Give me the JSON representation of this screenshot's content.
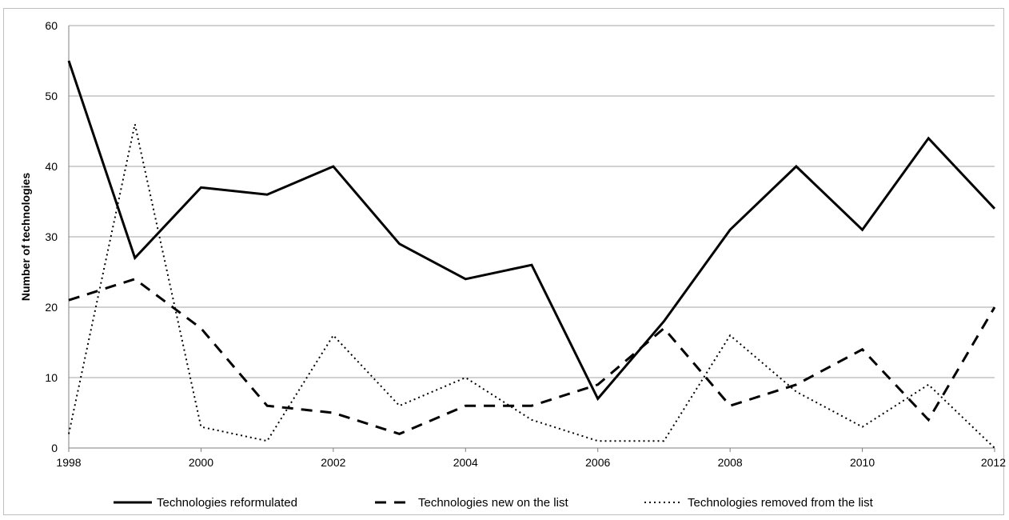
{
  "chart_data": {
    "type": "line",
    "title": "",
    "xlabel": "",
    "ylabel": "Number of technologies",
    "xlim": [
      1998,
      2012
    ],
    "ylim": [
      0,
      60
    ],
    "x_ticks": [
      "1998",
      "2000",
      "2002",
      "2004",
      "2006",
      "2008",
      "2010",
      "2012"
    ],
    "y_ticks": [
      "0",
      "10",
      "20",
      "30",
      "40",
      "50",
      "60"
    ],
    "grid": "horizontal",
    "legend_position": "bottom",
    "x": [
      1998,
      1999,
      2000,
      2001,
      2002,
      2003,
      2004,
      2005,
      2006,
      2007,
      2008,
      2009,
      2010,
      2011,
      2012
    ],
    "series": [
      {
        "name": "Technologies reformulated",
        "style": "solid",
        "color": "#000000",
        "values": [
          55,
          27,
          37,
          36,
          40,
          29,
          24,
          26,
          7,
          18,
          31,
          40,
          31,
          44,
          34
        ]
      },
      {
        "name": "Technologies new on the list",
        "style": "dashed",
        "color": "#000000",
        "values": [
          21,
          24,
          17,
          6,
          5,
          2,
          6,
          6,
          9,
          17,
          6,
          9,
          14,
          4,
          20
        ]
      },
      {
        "name": "Technologies removed from the list",
        "style": "dotted",
        "color": "#000000",
        "values": [
          2,
          46,
          3,
          1,
          16,
          6,
          10,
          4,
          1,
          1,
          16,
          8,
          3,
          9,
          0
        ]
      }
    ]
  }
}
